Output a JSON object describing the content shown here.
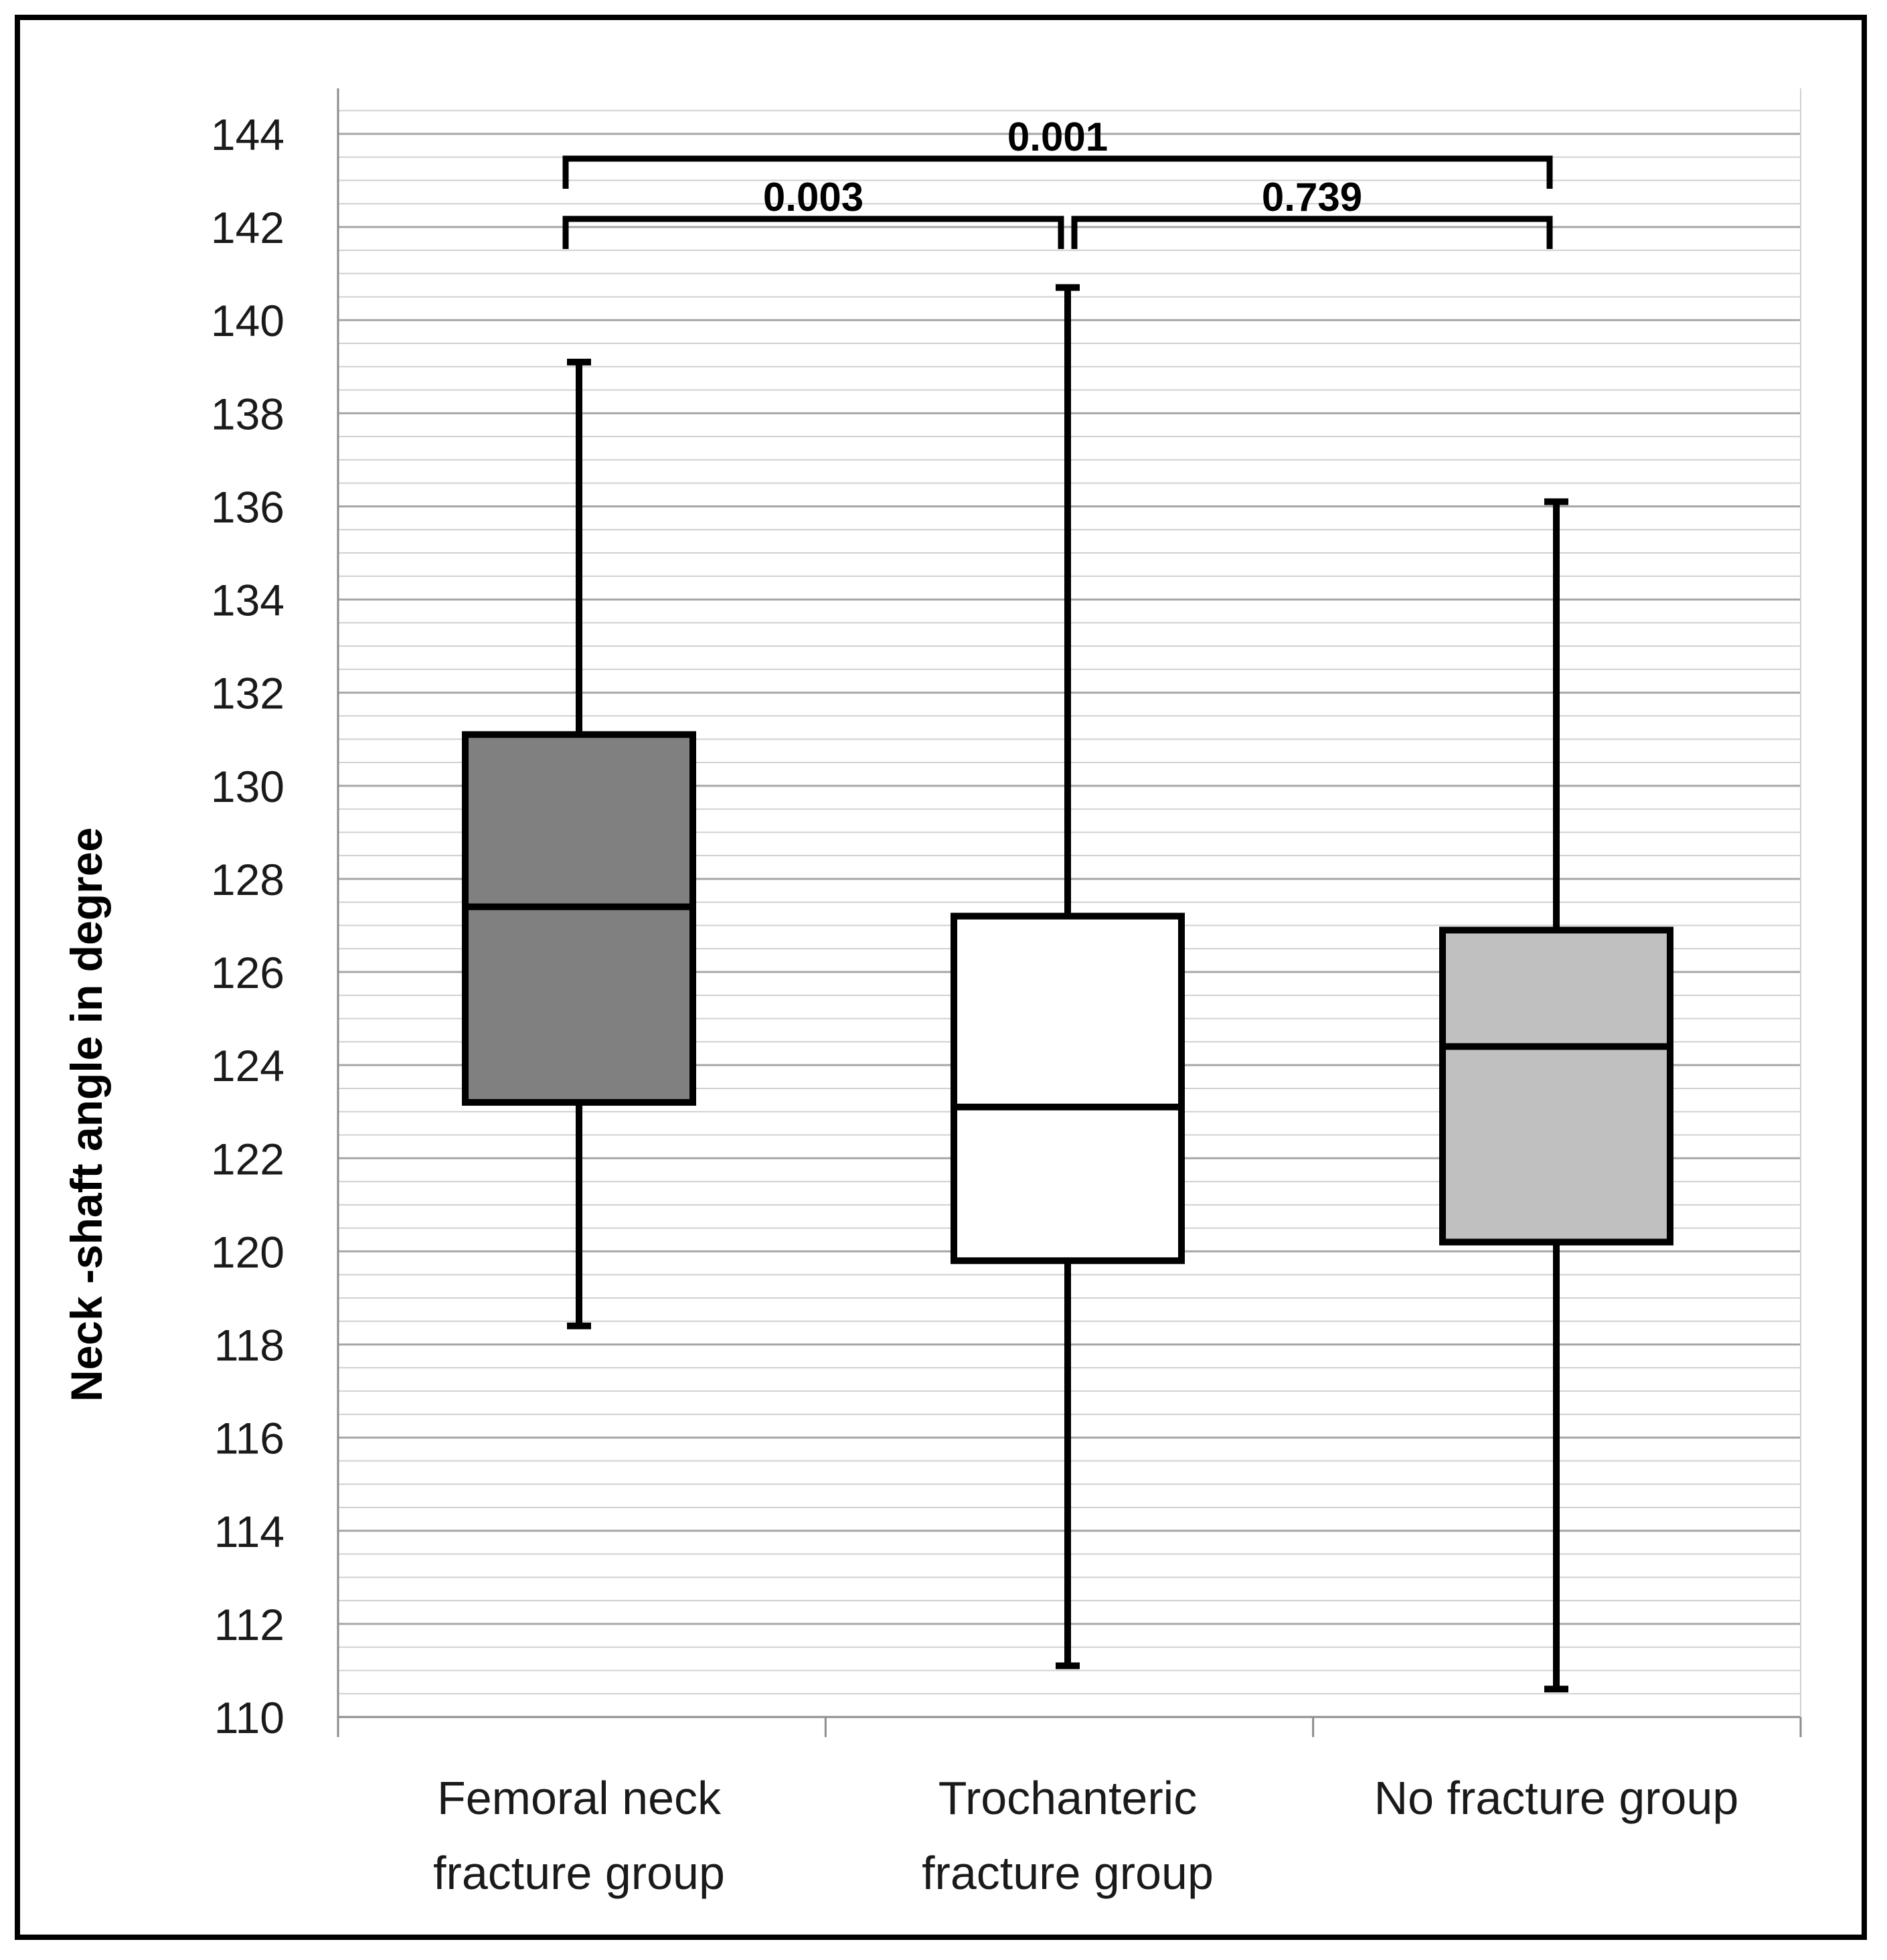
{
  "chart_data": {
    "type": "boxplot",
    "title": "",
    "xlabel": "",
    "ylabel": "Neck -shaft angle in degree",
    "ylim": [
      110,
      144
    ],
    "yticks": [
      110,
      112,
      114,
      116,
      118,
      120,
      122,
      124,
      126,
      128,
      130,
      132,
      134,
      136,
      138,
      140,
      142,
      144
    ],
    "minor_grid_step": 0.5,
    "grid": true,
    "categories": [
      [
        "Femoral neck",
        "fracture group"
      ],
      [
        "Trochanteric",
        "fracture group"
      ],
      [
        "No fracture group"
      ]
    ],
    "boxes": [
      {
        "min": 118.4,
        "q1": 123.2,
        "median": 127.4,
        "q3": 131.1,
        "max": 139.1,
        "fill": "#808080"
      },
      {
        "min": 111.1,
        "q1": 119.8,
        "median": 123.1,
        "q3": 127.2,
        "max": 140.7,
        "fill": "#ffffff"
      },
      {
        "min": 110.6,
        "q1": 120.2,
        "median": 124.4,
        "q3": 126.9,
        "max": 136.1,
        "fill": "#c0c0c0"
      }
    ],
    "comparisons": [
      {
        "from": 0,
        "to": 2,
        "p": "0.001"
      },
      {
        "from": 0,
        "to": 1,
        "p": "0.003"
      },
      {
        "from": 1,
        "to": 2,
        "p": "0.739"
      }
    ],
    "colors": {
      "gridline": "#a6a6a6",
      "axis": "#8c8c8c",
      "stroke": "#000000"
    }
  }
}
